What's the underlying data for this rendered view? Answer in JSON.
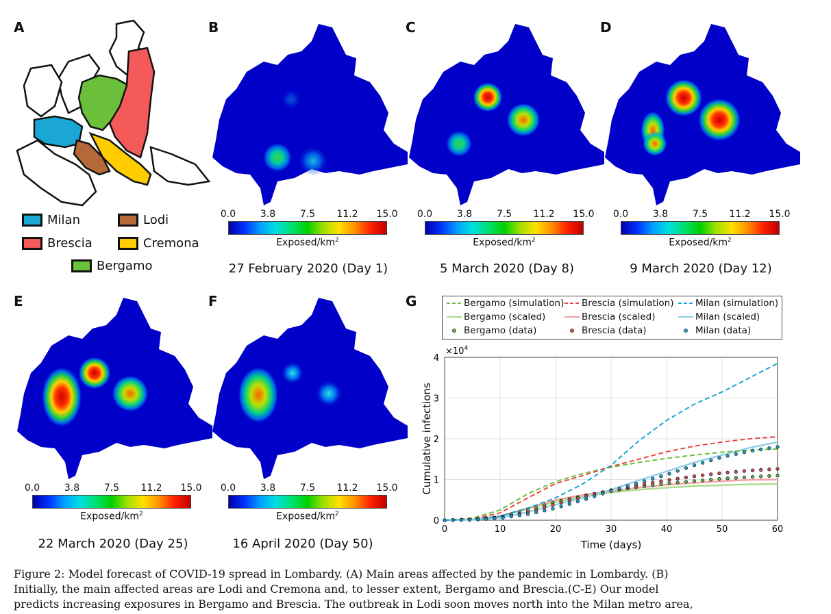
{
  "panel_labels": [
    "A",
    "B",
    "C",
    "D",
    "E",
    "F",
    "G"
  ],
  "regions": [
    {
      "name": "Milan",
      "color": "#1aa7d6"
    },
    {
      "name": "Lodi",
      "color": "#b5683a"
    },
    {
      "name": "Brescia",
      "color": "#f45a5a"
    },
    {
      "name": "Cremona",
      "color": "#ffcc00"
    },
    {
      "name": "Bergamo",
      "color": "#6abf3b"
    }
  ],
  "colorbar": {
    "ticks": [
      "0.0",
      "3.8",
      "7.5",
      "11.2",
      "15.0"
    ],
    "unit": "Exposed/km",
    "unit_sup": "2"
  },
  "maps": [
    {
      "panel": "B",
      "date": "27 February 2020 (Day 1)"
    },
    {
      "panel": "C",
      "date": "5 March 2020 (Day 8)"
    },
    {
      "panel": "D",
      "date": "9 March 2020 (Day 12)"
    },
    {
      "panel": "E",
      "date": "22 March 2020 (Day 25)"
    },
    {
      "panel": "F",
      "date": "16 April 2020 (Day 50)"
    }
  ],
  "chart_data": {
    "type": "line",
    "xlabel": "Time (days)",
    "ylabel": "Cumulative infections",
    "y_multiplier": "×10",
    "y_multiplier_exp": "4",
    "xlim": [
      0,
      60
    ],
    "ylim": [
      0,
      4
    ],
    "xticks": [
      0,
      10,
      20,
      30,
      40,
      50,
      60
    ],
    "yticks": [
      0,
      1,
      2,
      3,
      4
    ],
    "grid": true,
    "legend": "top",
    "colors": {
      "Bergamo": "#6abf3b",
      "Brescia": "#e8463e",
      "Milan": "#1aa7d6"
    },
    "series": [
      {
        "name": "Bergamo (simulation)",
        "style": "dashed",
        "x": [
          0,
          5,
          10,
          15,
          20,
          25,
          30,
          35,
          40,
          45,
          50,
          55,
          60
        ],
        "y": [
          0,
          0.05,
          0.25,
          0.65,
          0.95,
          1.15,
          1.3,
          1.42,
          1.52,
          1.6,
          1.67,
          1.72,
          1.75
        ]
      },
      {
        "name": "Brescia (simulation)",
        "style": "dashed",
        "x": [
          0,
          5,
          10,
          15,
          20,
          25,
          30,
          35,
          40,
          45,
          50,
          55,
          60
        ],
        "y": [
          0,
          0.03,
          0.18,
          0.55,
          0.9,
          1.1,
          1.32,
          1.5,
          1.68,
          1.82,
          1.92,
          2.0,
          2.05
        ]
      },
      {
        "name": "Milan (simulation)",
        "style": "dashed",
        "x": [
          0,
          5,
          10,
          15,
          20,
          25,
          30,
          35,
          40,
          45,
          50,
          55,
          60
        ],
        "y": [
          0,
          0.02,
          0.1,
          0.3,
          0.55,
          0.9,
          1.35,
          1.95,
          2.45,
          2.85,
          3.15,
          3.5,
          3.85
        ]
      },
      {
        "name": "Bergamo (scaled)",
        "style": "solid",
        "x": [
          0,
          5,
          10,
          15,
          20,
          25,
          30,
          35,
          40,
          45,
          50,
          55,
          60
        ],
        "y": [
          0,
          0.02,
          0.1,
          0.28,
          0.45,
          0.58,
          0.68,
          0.75,
          0.8,
          0.84,
          0.86,
          0.88,
          0.89
        ]
      },
      {
        "name": "Brescia (scaled)",
        "style": "solid",
        "x": [
          0,
          5,
          10,
          15,
          20,
          25,
          30,
          35,
          40,
          45,
          50,
          55,
          60
        ],
        "y": [
          0,
          0.02,
          0.1,
          0.3,
          0.5,
          0.62,
          0.72,
          0.8,
          0.87,
          0.92,
          0.96,
          0.99,
          1.0
        ]
      },
      {
        "name": "Milan (scaled)",
        "style": "solid",
        "x": [
          0,
          5,
          10,
          15,
          20,
          25,
          30,
          35,
          40,
          45,
          50,
          55,
          60
        ],
        "y": [
          0,
          0.01,
          0.06,
          0.2,
          0.38,
          0.55,
          0.75,
          0.98,
          1.2,
          1.42,
          1.6,
          1.78,
          1.92
        ]
      },
      {
        "name": "Bergamo (data)",
        "style": "dots",
        "x": [
          0,
          5,
          10,
          15,
          20,
          25,
          30,
          35,
          40,
          45,
          50,
          55,
          60
        ],
        "y": [
          0,
          0.02,
          0.08,
          0.25,
          0.45,
          0.6,
          0.72,
          0.82,
          0.9,
          0.96,
          1.02,
          1.06,
          1.1
        ]
      },
      {
        "name": "Brescia (data)",
        "style": "dots",
        "x": [
          0,
          5,
          10,
          15,
          20,
          25,
          30,
          35,
          40,
          45,
          50,
          55,
          60
        ],
        "y": [
          0,
          0.02,
          0.06,
          0.2,
          0.4,
          0.58,
          0.74,
          0.86,
          0.98,
          1.08,
          1.16,
          1.22,
          1.26
        ]
      },
      {
        "name": "Milan (data)",
        "style": "dots",
        "x": [
          0,
          5,
          10,
          15,
          20,
          25,
          30,
          35,
          40,
          45,
          50,
          55,
          60
        ],
        "y": [
          0,
          0.01,
          0.05,
          0.15,
          0.3,
          0.5,
          0.72,
          0.92,
          1.12,
          1.35,
          1.55,
          1.7,
          1.8
        ]
      }
    ]
  },
  "caption": {
    "lines": [
      "Figure 2: Model forecast of COVID-19 spread in Lombardy. (A) Main areas affected by the pandemic in Lombardy. (B)",
      "Initially, the main affected areas are Lodi and Cremona and, to lesser extent, Bergamo and Brescia.(C-E) Our model",
      "predicts increasing exposures in Bergamo and Brescia. The outbreak in Lodi soon moves north into the Milan metro area,"
    ]
  }
}
